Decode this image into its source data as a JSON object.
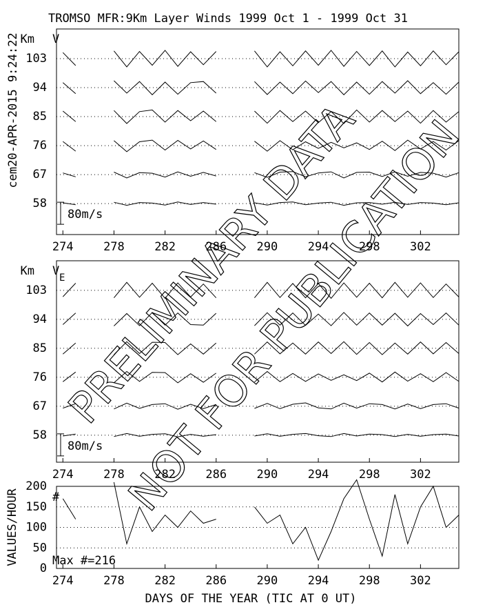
{
  "side_label": "cem20-APR-2015  9:24:22",
  "chart_data": [
    {
      "type": "layer-traces",
      "title": "TROMSO MFR:9Km Layer Winds 1999 Oct  1 - 1999 Oct 31",
      "component": "V",
      "y_unit": "Km",
      "x": [
        274,
        275,
        276,
        277,
        278,
        279,
        280,
        281,
        282,
        283,
        284,
        285,
        286,
        287,
        288,
        289,
        290,
        291,
        292,
        293,
        294,
        295,
        296,
        297,
        298,
        299,
        300,
        301,
        302,
        303,
        304,
        305
      ],
      "xlim": [
        273.5,
        305
      ],
      "xticks": [
        274,
        278,
        282,
        286,
        290,
        294,
        298,
        302
      ],
      "ylim": [
        48.4,
        112.2
      ],
      "yticks": [
        58,
        67,
        76,
        85,
        94,
        103
      ],
      "scale_bar": {
        "value": 80,
        "label": "80m/s"
      },
      "annotation": "PRELIMINARY DATA",
      "series": [
        {
          "values": [
            3,
            -4,
            null,
            null,
            5,
            -6,
            4,
            2,
            -5,
            6,
            -3,
            4,
            -2,
            null,
            null,
            3,
            -5,
            4,
            6,
            -4,
            2,
            5,
            -6,
            3,
            4,
            -2,
            5,
            -3,
            4,
            2,
            -4,
            3
          ]
        },
        {
          "values": [
            6,
            -8,
            null,
            null,
            9,
            -12,
            7,
            5,
            -9,
            10,
            -6,
            8,
            -5,
            null,
            null,
            7,
            -10,
            9,
            11,
            -8,
            6,
            10,
            -12,
            8,
            9,
            -7,
            10,
            -6,
            8,
            5,
            -9,
            7
          ]
        },
        {
          "values": [
            15,
            -20,
            null,
            null,
            18,
            -22,
            14,
            20,
            -16,
            19,
            -12,
            17,
            -14,
            null,
            null,
            16,
            -20,
            18,
            -15,
            14,
            -10,
            12,
            -8,
            10,
            -14,
            16,
            -18,
            20,
            -12,
            15,
            -16,
            18
          ]
        },
        {
          "values": [
            20,
            -18,
            null,
            null,
            22,
            -25,
            18,
            24,
            -20,
            22,
            -15,
            20,
            -18,
            null,
            null,
            20,
            -24,
            22,
            -18,
            20,
            -22,
            18,
            -25,
            24,
            -20,
            22,
            -18,
            20,
            -24,
            22,
            -20,
            18
          ]
        },
        {
          "values": [
            18,
            -22,
            null,
            null,
            25,
            -20,
            22,
            -26,
            20,
            -24,
            18,
            22,
            -20,
            null,
            null,
            22,
            -25,
            20,
            -22,
            24,
            -18,
            22,
            -26,
            20,
            -24,
            22,
            -20,
            25,
            -22,
            18,
            -24,
            20
          ]
        },
        {
          "values": [
            22,
            -25,
            null,
            null,
            28,
            -30,
            26,
            -24,
            30,
            -28,
            25,
            -22,
            26,
            null,
            null,
            28,
            -30,
            25,
            -26,
            28,
            -24,
            30,
            -28,
            26,
            -25,
            28,
            -30,
            24,
            -26,
            28,
            -22,
            25
          ]
        }
      ]
    },
    {
      "type": "layer-traces",
      "component": "V",
      "component_subscript": "E",
      "y_unit": "Km",
      "x": [
        274,
        275,
        276,
        277,
        278,
        279,
        280,
        281,
        282,
        283,
        284,
        285,
        286,
        287,
        288,
        289,
        290,
        291,
        292,
        293,
        294,
        295,
        296,
        297,
        298,
        299,
        300,
        301,
        302,
        303,
        304,
        305
      ],
      "xlim": [
        273.5,
        305
      ],
      "xticks": [
        274,
        278,
        282,
        286,
        290,
        294,
        298,
        302
      ],
      "ylim": [
        49.6,
        112.2
      ],
      "yticks": [
        58,
        67,
        76,
        85,
        94,
        103
      ],
      "scale_bar": {
        "value": 80,
        "label": "80m/s"
      },
      "annotation": "NOT FOR PUBLICATION",
      "series": [
        {
          "values": [
            -3,
            4,
            null,
            null,
            -5,
            6,
            -4,
            3,
            5,
            -6,
            3,
            -4,
            2,
            null,
            null,
            -3,
            5,
            -4,
            3,
            6,
            -2,
            -5,
            6,
            -3,
            4,
            2,
            -5,
            3,
            -4,
            2,
            4,
            -3
          ]
        },
        {
          "values": [
            -7,
            9,
            null,
            null,
            -10,
            11,
            -8,
            6,
            9,
            -11,
            7,
            -9,
            6,
            null,
            null,
            -8,
            10,
            -9,
            7,
            12,
            -6,
            -10,
            11,
            -7,
            9,
            6,
            -10,
            8,
            -9,
            6,
            9,
            -7
          ]
        },
        {
          "values": [
            -16,
            19,
            null,
            null,
            -20,
            21,
            -15,
            18,
            17,
            -20,
            13,
            -18,
            15,
            null,
            null,
            -17,
            21,
            -16,
            14,
            -15,
            12,
            -11,
            9,
            -12,
            15,
            -17,
            19,
            -14,
            13,
            -16,
            17,
            -15
          ]
        },
        {
          "values": [
            -21,
            19,
            null,
            null,
            -23,
            24,
            -19,
            22,
            21,
            -23,
            16,
            -21,
            19,
            null,
            null,
            -21,
            23,
            -20,
            19,
            -21,
            23,
            -19,
            24,
            -22,
            21,
            -23,
            19,
            -21,
            23,
            -20,
            21,
            -19
          ]
        },
        {
          "values": [
            -19,
            23,
            null,
            null,
            -24,
            21,
            -23,
            25,
            -21,
            23,
            -19,
            -21,
            22,
            null,
            null,
            -23,
            24,
            -21,
            23,
            -22,
            19,
            -23,
            25,
            -21,
            23,
            -21,
            22,
            -24,
            21,
            -19,
            23,
            -21
          ]
        },
        {
          "values": [
            -23,
            26,
            null,
            null,
            -27,
            29,
            -25,
            26,
            -29,
            27,
            -24,
            23,
            -27,
            null,
            null,
            -27,
            29,
            -26,
            25,
            -27,
            25,
            -29,
            27,
            -25,
            26,
            -27,
            29,
            -25,
            27,
            -26,
            23,
            -24
          ]
        }
      ]
    },
    {
      "type": "line",
      "y_label": "VALUES/HOUR",
      "x_label": "DAYS OF THE YEAR (TIC AT 0 UT)",
      "marker": "#",
      "annotation": "Max #=216",
      "x": [
        274,
        275,
        276,
        277,
        278,
        279,
        280,
        281,
        282,
        283,
        284,
        285,
        286,
        287,
        288,
        289,
        290,
        291,
        292,
        293,
        294,
        295,
        296,
        297,
        298,
        299,
        300,
        301,
        302,
        303,
        304,
        305
      ],
      "xlim": [
        273.5,
        305
      ],
      "xticks": [
        274,
        278,
        282,
        286,
        290,
        294,
        298,
        302
      ],
      "ylim": [
        0,
        200
      ],
      "yticks": [
        0,
        50,
        100,
        150,
        200
      ],
      "grid": true,
      "color": "#000000",
      "values": [
        170,
        120,
        null,
        null,
        210,
        60,
        150,
        90,
        130,
        100,
        140,
        110,
        120,
        null,
        null,
        150,
        110,
        130,
        60,
        100,
        20,
        90,
        170,
        216,
        120,
        30,
        180,
        60,
        150,
        200,
        100,
        130
      ]
    }
  ]
}
